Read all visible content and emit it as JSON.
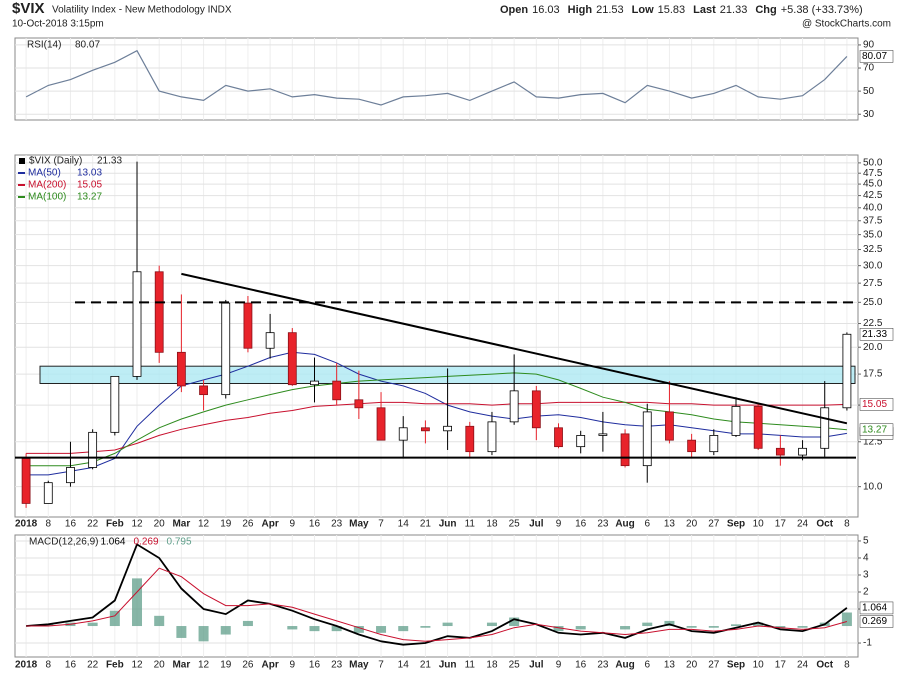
{
  "header": {
    "symbol": "$VIX",
    "name": "Volatility Index - New Methodology INDX",
    "datetime": "10-Oct-2018 3:15pm",
    "quote": [
      {
        "label": "Open",
        "value": 16.03
      },
      {
        "label": "High",
        "value": 21.53
      },
      {
        "label": "Low",
        "value": 15.83
      },
      {
        "label": "Last",
        "value": 21.33
      },
      {
        "label": "Chg",
        "value": "+5.38 (+33.73%)"
      }
    ],
    "credit": "@ StockCharts.com"
  },
  "chart_data": [
    {
      "type": "line",
      "title": "RSI(14)",
      "ylim": [
        25,
        96
      ],
      "yticks": [
        30,
        50,
        70,
        90
      ],
      "grid": true,
      "series": [
        {
          "name": "RSI(14)",
          "color": "#6d7f99",
          "values": [
            45,
            55,
            60,
            68,
            75,
            85,
            50,
            45,
            42,
            55,
            50,
            52,
            45,
            47,
            44,
            43,
            38,
            45,
            46,
            48,
            42,
            50,
            58,
            45,
            44,
            47,
            48,
            40,
            55,
            50,
            44,
            48,
            55,
            45,
            43,
            46,
            60,
            80.07
          ]
        }
      ]
    },
    {
      "type": "candlestick",
      "title": "$VIX (Daily)",
      "log": true,
      "grid": true,
      "up_color": "#ffffff",
      "down_color": "#e8232b",
      "categories": [
        "2018",
        "8",
        "16",
        "22",
        "Feb",
        "12",
        "20",
        "Mar",
        "12",
        "19",
        "26",
        "Apr",
        "9",
        "16",
        "23",
        "May",
        "7",
        "14",
        "21",
        "Jun",
        "11",
        "18",
        "25",
        "Jul",
        "9",
        "16",
        "23",
        "Aug",
        "6",
        "13",
        "20",
        "27",
        "Sep",
        "10",
        "17",
        "24",
        "Oct",
        "8"
      ],
      "open": [
        11.5,
        9.2,
        10.2,
        11.0,
        13.1,
        17.3,
        29.1,
        19.5,
        16.5,
        15.8,
        24.9,
        19.9,
        21.5,
        16.6,
        16.9,
        15.4,
        14.8,
        12.6,
        13.4,
        13.2,
        13.5,
        11.9,
        13.8,
        16.1,
        13.4,
        12.2,
        12.9,
        13.0,
        11.1,
        14.5,
        12.6,
        11.9,
        12.9,
        14.9,
        12.1,
        11.7,
        12.1,
        14.8
      ],
      "high": [
        11.8,
        10.3,
        12.5,
        13.3,
        17.3,
        50.3,
        30.0,
        26.0,
        17.0,
        25.3,
        25.8,
        23.6,
        22.0,
        19.0,
        18.5,
        17.8,
        16.0,
        14.2,
        13.9,
        18.0,
        13.8,
        14.5,
        19.3,
        16.5,
        13.7,
        13.2,
        14.5,
        13.3,
        15.1,
        16.9,
        13.0,
        13.3,
        15.6,
        15.1,
        12.9,
        12.6,
        16.9,
        21.53
      ],
      "low": [
        9.0,
        9.2,
        10.0,
        10.9,
        12.9,
        17.0,
        18.5,
        16.0,
        14.6,
        15.5,
        19.5,
        18.9,
        16.5,
        15.2,
        15.0,
        14.0,
        12.6,
        11.5,
        12.4,
        12.0,
        11.6,
        11.7,
        13.6,
        12.6,
        12.1,
        11.8,
        11.9,
        11.0,
        10.2,
        12.4,
        11.5,
        11.7,
        12.8,
        12.0,
        11.1,
        11.4,
        11.6,
        14.6
      ],
      "close": [
        9.2,
        10.2,
        11.0,
        13.1,
        17.3,
        29.1,
        19.5,
        16.5,
        15.8,
        24.9,
        19.9,
        21.5,
        16.6,
        16.9,
        15.4,
        14.8,
        12.6,
        13.4,
        13.2,
        13.5,
        11.9,
        13.8,
        16.1,
        13.4,
        12.2,
        12.9,
        13.0,
        11.1,
        14.5,
        12.6,
        11.9,
        12.9,
        14.9,
        12.1,
        11.7,
        12.1,
        14.8,
        21.33
      ],
      "series": [
        {
          "name": "MA(50)",
          "color": "#1f2d9e",
          "values": [
            10.6,
            10.6,
            10.8,
            11.0,
            11.5,
            13.5,
            15.0,
            16.5,
            17.0,
            17.5,
            18.2,
            19.0,
            19.5,
            19.3,
            18.5,
            17.5,
            16.9,
            16.5,
            15.9,
            15.0,
            14.5,
            14.2,
            14.0,
            14.2,
            14.3,
            14.1,
            13.8,
            13.6,
            13.5,
            13.6,
            13.4,
            13.2,
            13.0,
            13.0,
            12.9,
            12.8,
            12.8,
            13.03
          ]
        },
        {
          "name": "MA(200)",
          "color": "#c8102e",
          "values": [
            11.8,
            11.8,
            11.8,
            11.9,
            12.0,
            12.4,
            12.9,
            13.3,
            13.6,
            13.9,
            14.1,
            14.4,
            14.6,
            14.9,
            15.0,
            15.1,
            15.2,
            15.2,
            15.1,
            15.1,
            15.1,
            15.0,
            15.1,
            15.1,
            15.2,
            15.2,
            15.2,
            15.2,
            15.2,
            15.1,
            15.1,
            15.0,
            15.0,
            15.0,
            15.0,
            15.0,
            15.0,
            15.05
          ]
        },
        {
          "name": "MA(100)",
          "color": "#2e8b1e",
          "values": [
            11.1,
            11.1,
            11.1,
            11.3,
            11.8,
            12.6,
            13.4,
            14.0,
            14.5,
            15.0,
            15.4,
            15.8,
            16.2,
            16.5,
            16.7,
            16.9,
            17.0,
            17.1,
            17.2,
            17.3,
            17.4,
            17.5,
            17.6,
            17.5,
            17.0,
            16.3,
            15.6,
            15.2,
            14.7,
            14.5,
            14.3,
            14.0,
            13.8,
            13.7,
            13.6,
            13.5,
            13.4,
            13.27
          ]
        }
      ],
      "ylim": [
        8.6,
        52
      ],
      "yticks": [
        {
          "value": 10,
          "label": "10.0"
        },
        {
          "value": 12.5,
          "label": "12.5"
        },
        {
          "value": 15,
          "label": "15.0"
        },
        {
          "value": 17.5,
          "label": "17.5"
        },
        {
          "value": 20,
          "label": "20.0"
        },
        {
          "value": 22.5,
          "label": "22.5"
        },
        {
          "value": 25,
          "label": "25.0"
        },
        {
          "value": 27.5,
          "label": "27.5"
        },
        {
          "value": 30,
          "label": "30.0"
        },
        {
          "value": 32.5,
          "label": "32.5"
        },
        {
          "value": 35,
          "label": "35.0"
        },
        {
          "value": 37.5,
          "label": "37.5"
        },
        {
          "value": 40,
          "label": "40.0"
        },
        {
          "value": 42.5,
          "label": "42.5"
        },
        {
          "value": 45,
          "label": "45.0"
        },
        {
          "value": 47.5,
          "label": "47.5"
        },
        {
          "value": 50,
          "label": "50.0"
        }
      ],
      "annotations": {
        "zone": [
          16.7,
          18.2
        ],
        "resistance": 25,
        "support": 11.55,
        "trendline": {
          "from": {
            "x": 7,
            "y": 28.8
          },
          "to": {
            "x": 37,
            "y": 13.7
          }
        }
      }
    },
    {
      "type": "macd",
      "title": "MACD(12,26,9)",
      "ylim": [
        -1.82,
        5.35
      ],
      "yticks": [
        -1,
        1,
        2,
        3,
        4,
        5
      ],
      "grid": true,
      "series": [
        {
          "color": "#000000",
          "values": [
            0,
            0.1,
            0.3,
            0.5,
            1.5,
            4.8,
            4.0,
            2.2,
            1.0,
            0.7,
            1.5,
            1.3,
            0.9,
            0.4,
            0.0,
            -0.5,
            -0.9,
            -1.1,
            -1.0,
            -0.6,
            -0.7,
            -0.3,
            0.4,
            0.1,
            -0.4,
            -0.5,
            -0.4,
            -0.7,
            -0.2,
            0.1,
            -0.3,
            -0.4,
            -0.1,
            0.2,
            -0.2,
            -0.3,
            0.1,
            1.064
          ]
        },
        {
          "color": "#c8102e",
          "values": [
            0,
            0,
            0.1,
            0.3,
            0.6,
            2.0,
            3.4,
            2.9,
            1.9,
            1.2,
            1.2,
            1.3,
            1.1,
            0.7,
            0.3,
            -0.1,
            -0.5,
            -0.8,
            -0.9,
            -0.8,
            -0.7,
            -0.5,
            -0.1,
            0.1,
            -0.1,
            -0.3,
            -0.4,
            -0.5,
            -0.4,
            -0.2,
            -0.2,
            -0.3,
            -0.2,
            0.0,
            -0.1,
            -0.2,
            -0.1,
            0.269
          ]
        }
      ],
      "histogram": {
        "color": "#5f9e8a",
        "values": [
          0,
          0.1,
          0.2,
          0.2,
          0.9,
          2.8,
          0.6,
          -0.7,
          -0.9,
          -0.5,
          0.3,
          0.0,
          -0.2,
          -0.3,
          -0.3,
          -0.4,
          -0.4,
          -0.3,
          -0.1,
          0.2,
          0.0,
          0.2,
          0.5,
          0.0,
          -0.3,
          -0.2,
          0.0,
          -0.2,
          0.2,
          0.3,
          -0.1,
          -0.1,
          0.1,
          0.2,
          -0.1,
          -0.1,
          0.2,
          0.795
        ]
      }
    }
  ]
}
